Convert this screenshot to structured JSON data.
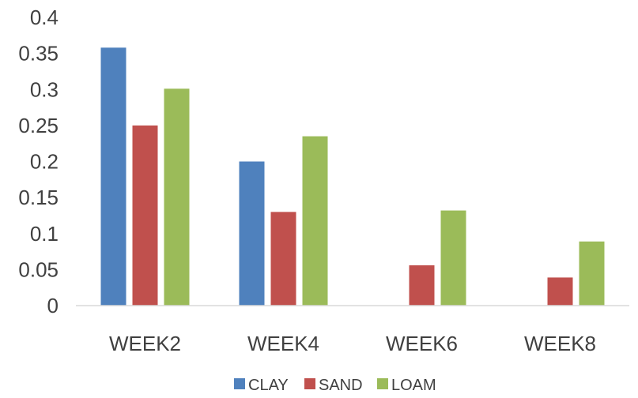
{
  "chart_data": {
    "type": "bar",
    "categories": [
      "WEEK2",
      "WEEK4",
      "WEEK6",
      "WEEK8"
    ],
    "series": [
      {
        "name": "CLAY",
        "values": [
          0.358,
          0.2,
          0,
          0
        ],
        "color": "#4f81bd"
      },
      {
        "name": "SAND",
        "values": [
          0.25,
          0.13,
          0.056,
          0.039
        ],
        "color": "#c0504d"
      },
      {
        "name": "LOAM",
        "values": [
          0.301,
          0.235,
          0.132,
          0.089
        ],
        "color": "#9bbb59"
      }
    ],
    "yticks": [
      "0",
      "0.05",
      "0.1",
      "0.15",
      "0.2",
      "0.25",
      "0.3",
      "0.35",
      "0.4"
    ],
    "ylim": [
      0,
      0.4
    ],
    "grid": false,
    "legend_position": "bottom",
    "title": "",
    "xlabel": "",
    "ylabel": ""
  }
}
